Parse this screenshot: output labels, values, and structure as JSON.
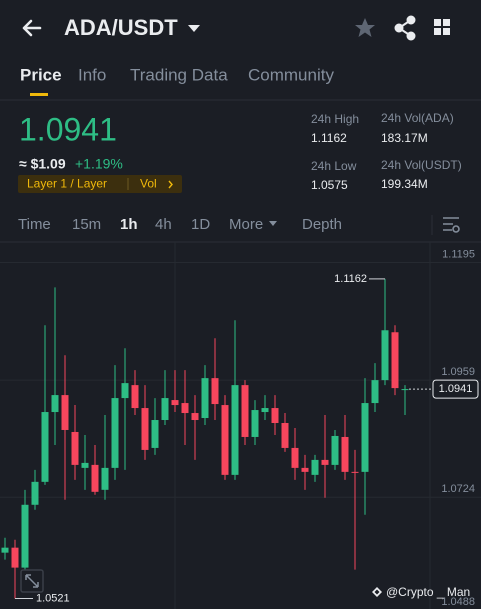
{
  "header": {
    "pair": "ADA/USDT"
  },
  "tabs": [
    "Price",
    "Info",
    "Trading Data",
    "Community"
  ],
  "price": {
    "last": "1.0941",
    "usd": "≈ $1.09",
    "change": "+1.19%",
    "tag": "Layer 1 / Layer",
    "tag_link": "Vol"
  },
  "stats": [
    {
      "label": "24h High",
      "value": "1.1162"
    },
    {
      "label": "24h Vol(ADA)",
      "value": "183.17M"
    },
    {
      "label": "24h Low",
      "value": "1.0575"
    },
    {
      "label": "24h Vol(USDT)",
      "value": "199.34M"
    }
  ],
  "intervals": [
    "Time",
    "15m",
    "1h",
    "4h",
    "1D",
    "More",
    "Depth"
  ],
  "chart_data": {
    "type": "candlestick",
    "up_color": "#2ebd85",
    "down_color": "#f6465d",
    "ylim": [
      1.05,
      1.124
    ],
    "yticks": [
      1.1195,
      1.0959,
      1.0724,
      1.0488
    ],
    "open": [
      1.0613,
      1.0623,
      1.0583,
      1.0709,
      1.0755,
      1.0895,
      1.0929,
      1.0855,
      1.0783,
      1.0789,
      1.0739,
      1.0783,
      1.0923,
      1.0949,
      1.0903,
      1.0823,
      1.0879,
      1.0919,
      1.0913,
      1.0893,
      1.0883,
      1.0963,
      1.0909,
      1.0769,
      1.0949,
      1.0845,
      1.0895,
      1.0903,
      1.0873,
      1.0823,
      1.0783,
      1.0769,
      1.0799,
      1.0789,
      1.0845,
      1.0775,
      1.0775,
      1.0913,
      1.0959,
      1.1055,
      1.0939
    ],
    "high": [
      1.0643,
      1.0639,
      1.0739,
      1.0779,
      1.1069,
      1.1145,
      1.1009,
      1.0909,
      1.0849,
      1.0829,
      1.0889,
      1.0989,
      1.1023,
      1.0979,
      1.0949,
      1.0923,
      1.0979,
      1.0979,
      1.0979,
      1.0929,
      1.0989,
      1.1043,
      1.0929,
      1.1079,
      1.0959,
      1.0919,
      1.0929,
      1.0929,
      1.0893,
      1.0863,
      1.0809,
      1.0809,
      1.0889,
      1.0859,
      1.0889,
      1.0819,
      1.0963,
      1.0993,
      1.1162,
      1.1069,
      1.0949
    ],
    "low": [
      1.0599,
      1.0521,
      1.0569,
      1.0699,
      1.0749,
      1.0829,
      1.0719,
      1.0759,
      1.0739,
      1.0729,
      1.0719,
      1.0759,
      1.0779,
      1.0889,
      1.0799,
      1.0809,
      1.0869,
      1.0895,
      1.0829,
      1.0799,
      1.0869,
      1.0879,
      1.0759,
      1.0759,
      1.0829,
      1.0829,
      1.0879,
      1.0849,
      1.0815,
      1.0759,
      1.0739,
      1.0755,
      1.0723,
      1.0779,
      1.0759,
      1.0579,
      1.0689,
      1.0895,
      1.0949,
      1.0929,
      1.0889
    ],
    "close": [
      1.0623,
      1.0583,
      1.0709,
      1.0755,
      1.0895,
      1.0929,
      1.0859,
      1.0789,
      1.0793,
      1.0735,
      1.0783,
      1.0923,
      1.0953,
      1.0903,
      1.0819,
      1.0879,
      1.0923,
      1.0909,
      1.0893,
      1.0879,
      1.0963,
      1.0911,
      1.0769,
      1.0949,
      1.0845,
      1.0899,
      1.0903,
      1.0873,
      1.0823,
      1.0783,
      1.0775,
      1.0799,
      1.0789,
      1.0847,
      1.0775,
      1.0773,
      1.0913,
      1.0959,
      1.1059,
      1.0943,
      1.0941
    ],
    "high_label": "1.1162",
    "low_label": "1.0521",
    "last_label": "1.0941",
    "watermark": "@Crypto _ Man"
  }
}
